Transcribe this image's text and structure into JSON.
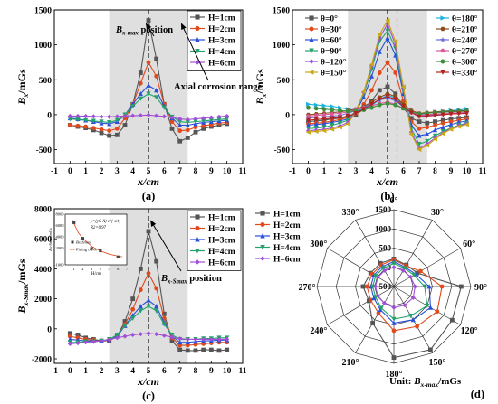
{
  "chart_data": [
    {
      "id": "a",
      "type": "line",
      "panel_label": "(a)",
      "xlabel": "x/cm",
      "ylabel": "Bx/mGs",
      "ylabel_main": "B",
      "ylabel_sub": "x",
      "ylabel_rest": "/mGs",
      "xlim": [
        -1,
        11
      ],
      "ylim": [
        -700,
        1500
      ],
      "xticks": [
        -1,
        0,
        1,
        2,
        3,
        4,
        5,
        6,
        7,
        8,
        9,
        10,
        11
      ],
      "yticks": [
        -500,
        0,
        500,
        1000,
        1500
      ],
      "grid": false,
      "shaded_ranges": [
        [
          2.5,
          7.5
        ]
      ],
      "vlines": [
        {
          "x": 5,
          "style": "dashed",
          "color": "#000000"
        }
      ],
      "legend": "top-right",
      "annotations": [
        {
          "main": "B",
          "sub": "x-max",
          "rest": " position"
        },
        {
          "main": "Axial corrosion range",
          "sub": "",
          "rest": ""
        }
      ],
      "x": [
        0,
        0.5,
        1,
        1.5,
        2,
        2.5,
        3,
        3.5,
        4,
        4.5,
        5,
        5.5,
        6,
        6.5,
        7,
        7.5,
        8,
        8.5,
        9,
        9.5,
        10
      ],
      "series": [
        {
          "name": "H=1cm",
          "color": "#555555",
          "marker": "square",
          "values": [
            -150,
            -170,
            -190,
            -220,
            -260,
            -300,
            -290,
            -150,
            150,
            600,
            1350,
            800,
            150,
            -200,
            -380,
            -330,
            -250,
            -200,
            -170,
            -150,
            -130
          ]
        },
        {
          "name": "H=2cm",
          "color": "#e04a1c",
          "marker": "circle",
          "values": [
            -150,
            -160,
            -170,
            -190,
            -210,
            -230,
            -200,
            -50,
            150,
            450,
            750,
            550,
            150,
            -100,
            -230,
            -220,
            -180,
            -160,
            -140,
            -120,
            -110
          ]
        },
        {
          "name": "H=3cm",
          "color": "#2a4fd8",
          "marker": "triangle-up",
          "values": [
            -50,
            -60,
            -80,
            -100,
            -120,
            -130,
            -100,
            0,
            150,
            300,
            420,
            350,
            120,
            -50,
            -150,
            -150,
            -130,
            -110,
            -100,
            -90,
            -80
          ]
        },
        {
          "name": "H=4cm",
          "color": "#23a36b",
          "marker": "triangle-down",
          "values": [
            -60,
            -70,
            -80,
            -90,
            -100,
            -110,
            -80,
            0,
            120,
            230,
            300,
            250,
            100,
            -30,
            -100,
            -110,
            -100,
            -90,
            -80,
            -70,
            -60
          ]
        },
        {
          "name": "H=6cm",
          "color": "#a24fd8",
          "marker": "diamond",
          "values": [
            -20,
            -20,
            -20,
            -25,
            -30,
            -30,
            -25,
            -20,
            -15,
            -10,
            -5,
            -15,
            -25,
            -40,
            -60,
            -70,
            -60,
            -50,
            -40,
            -30,
            -20
          ]
        }
      ]
    },
    {
      "id": "b",
      "type": "line",
      "panel_label": "(b)",
      "xlabel": "x/cm",
      "ylabel": "Bx/mGs",
      "ylabel_main": "B",
      "ylabel_sub": "x",
      "ylabel_rest": "/mGs",
      "xlim": [
        -1,
        11
      ],
      "ylim": [
        -700,
        1500
      ],
      "xticks": [
        -1,
        0,
        1,
        2,
        3,
        4,
        5,
        6,
        7,
        8,
        9,
        10,
        11
      ],
      "yticks": [
        -500,
        0,
        500,
        1000,
        1500
      ],
      "grid": false,
      "shaded_ranges": [
        [
          2.5,
          7.5
        ]
      ],
      "vlines": [
        {
          "x": 5,
          "style": "dashed",
          "color": "#000000"
        },
        {
          "x": 5.6,
          "style": "dashed",
          "color": "#c0392b"
        }
      ],
      "legend": "top",
      "x": [
        0,
        0.5,
        1,
        1.5,
        2,
        2.5,
        3,
        3.5,
        4,
        4.5,
        5,
        5.5,
        6,
        6.5,
        7,
        7.5,
        8,
        8.5,
        9,
        9.5,
        10
      ],
      "series": [
        {
          "name": "θ=0°",
          "color": "#555555",
          "marker": "square",
          "values": [
            -100,
            -90,
            -80,
            -60,
            -50,
            -30,
            0,
            80,
            200,
            350,
            400,
            300,
            100,
            -50,
            -100,
            -120,
            -100,
            -80,
            -60,
            -50,
            -40
          ]
        },
        {
          "name": "θ=30°",
          "color": "#e04a1c",
          "marker": "circle",
          "values": [
            -130,
            -120,
            -110,
            -90,
            -70,
            -40,
            20,
            150,
            350,
            600,
            750,
            600,
            200,
            -100,
            -200,
            -180,
            -150,
            -120,
            -100,
            -80,
            -60
          ]
        },
        {
          "name": "θ=60°",
          "color": "#2a4fd8",
          "marker": "triangle-up",
          "values": [
            -150,
            -140,
            -130,
            -110,
            -90,
            -60,
            50,
            250,
            550,
            900,
            1100,
            850,
            300,
            -150,
            -300,
            -280,
            -220,
            -180,
            -140,
            -110,
            -90
          ]
        },
        {
          "name": "θ=90°",
          "color": "#23a36b",
          "marker": "triangle-down",
          "values": [
            -200,
            -190,
            -180,
            -150,
            -120,
            -80,
            60,
            300,
            650,
            1050,
            1200,
            950,
            350,
            -200,
            -420,
            -380,
            -300,
            -240,
            -190,
            -150,
            -120
          ]
        },
        {
          "name": "θ=120°",
          "color": "#a24fd8",
          "marker": "diamond",
          "values": [
            -230,
            -220,
            -210,
            -190,
            -160,
            -110,
            50,
            320,
            700,
            1100,
            1300,
            1000,
            380,
            -250,
            -480,
            -420,
            -330,
            -260,
            -200,
            -160,
            -130
          ]
        },
        {
          "name": "θ=150°",
          "color": "#c9a812",
          "marker": "triangle-left",
          "values": [
            -250,
            -240,
            -230,
            -210,
            -180,
            -130,
            40,
            330,
            720,
            1150,
            1350,
            1050,
            400,
            -280,
            -500,
            -440,
            -350,
            -270,
            -210,
            -170,
            -140
          ]
        },
        {
          "name": "θ=180°",
          "color": "#1ab3e0",
          "marker": "triangle-right",
          "values": [
            150,
            140,
            130,
            120,
            100,
            80,
            60,
            80,
            130,
            220,
            280,
            240,
            120,
            40,
            0,
            20,
            40,
            50,
            60,
            70,
            80
          ]
        },
        {
          "name": "θ=210°",
          "color": "#8b4a1c",
          "marker": "hexagon",
          "values": [
            0,
            10,
            20,
            30,
            40,
            60,
            80,
            120,
            180,
            250,
            300,
            260,
            150,
            60,
            20,
            30,
            40,
            45,
            50,
            55,
            60
          ]
        },
        {
          "name": "θ=240°",
          "color": "#6e6ed8",
          "marker": "star",
          "values": [
            -50,
            -40,
            -30,
            -20,
            -10,
            20,
            60,
            110,
            160,
            210,
            240,
            200,
            110,
            30,
            -20,
            -10,
            0,
            10,
            20,
            25,
            30
          ]
        },
        {
          "name": "θ=270°",
          "color": "#d85a9a",
          "marker": "pentagon",
          "values": [
            -20,
            -10,
            0,
            10,
            20,
            40,
            70,
            100,
            130,
            160,
            180,
            150,
            90,
            30,
            -10,
            0,
            10,
            15,
            20,
            25,
            30
          ]
        },
        {
          "name": "θ=300°",
          "color": "#3e8e3e",
          "marker": "circle",
          "values": [
            100,
            90,
            80,
            70,
            60,
            50,
            50,
            70,
            100,
            140,
            160,
            140,
            90,
            40,
            10,
            20,
            30,
            35,
            40,
            45,
            50
          ]
        },
        {
          "name": "θ=330°",
          "color": "#b22222",
          "marker": "triangle-down",
          "values": [
            -80,
            -70,
            -60,
            -50,
            -40,
            -20,
            20,
            80,
            150,
            220,
            260,
            220,
            120,
            30,
            -30,
            -20,
            -10,
            0,
            10,
            15,
            20
          ]
        }
      ]
    },
    {
      "id": "c",
      "type": "line",
      "panel_label": "(c)",
      "xlabel": "x/cm",
      "ylabel": "Bx-Smax/mGs",
      "ylabel_main": "B",
      "ylabel_sub": "x-Smax",
      "ylabel_rest": "/mGs",
      "xlim": [
        -1,
        11
      ],
      "ylim": [
        -2300,
        8000
      ],
      "xticks": [
        -1,
        0,
        1,
        2,
        3,
        4,
        5,
        6,
        7,
        8,
        9,
        10,
        11
      ],
      "yticks": [
        -2000,
        0,
        2000,
        4000,
        6000,
        8000
      ],
      "grid": false,
      "shaded_ranges": [
        [
          2.5,
          7.5
        ]
      ],
      "vlines": [
        {
          "x": 5,
          "style": "dashed",
          "color": "#000000"
        }
      ],
      "legend": "top-right",
      "annotations": [
        {
          "main": "B",
          "sub": "x-Smax",
          "rest": " position"
        }
      ],
      "x": [
        0,
        0.5,
        1,
        1.5,
        2,
        2.5,
        3,
        3.5,
        4,
        4.5,
        5,
        5.5,
        6,
        6.5,
        7,
        7.5,
        8,
        8.5,
        9,
        9.5,
        10
      ],
      "series": [
        {
          "name": "H=1cm",
          "color": "#555555",
          "marker": "square",
          "values": [
            -300,
            -400,
            -600,
            -700,
            -800,
            -800,
            -500,
            500,
            2000,
            4000,
            6500,
            4500,
            1000,
            -800,
            -1400,
            -1450,
            -1450,
            -1400,
            -1400,
            -1450,
            -1400
          ]
        },
        {
          "name": "H=2cm",
          "color": "#e04a1c",
          "marker": "circle",
          "values": [
            -500,
            -600,
            -700,
            -750,
            -800,
            -800,
            -500,
            300,
            1300,
            2600,
            3700,
            2700,
            700,
            -600,
            -1100,
            -1100,
            -1050,
            -1000,
            -950,
            -900,
            -900
          ]
        },
        {
          "name": "H=3cm",
          "color": "#2a4fd8",
          "marker": "triangle-up",
          "values": [
            -700,
            -750,
            -800,
            -800,
            -800,
            -750,
            -500,
            200,
            900,
            1500,
            1900,
            1500,
            400,
            -500,
            -900,
            -900,
            -850,
            -800,
            -800,
            -750,
            -750
          ]
        },
        {
          "name": "H=4cm",
          "color": "#23a36b",
          "marker": "triangle-down",
          "values": [
            -900,
            -900,
            -850,
            -850,
            -800,
            -700,
            -400,
            200,
            700,
            1200,
            1500,
            1200,
            300,
            -400,
            -700,
            -700,
            -700,
            -650,
            -650,
            -600,
            -600
          ]
        },
        {
          "name": "H=6cm",
          "color": "#a24fd8",
          "marker": "diamond",
          "values": [
            -1000,
            -950,
            -900,
            -850,
            -800,
            -700,
            -600,
            -500,
            -400,
            -350,
            -300,
            -350,
            -450,
            -550,
            -650,
            -700,
            -700,
            -700,
            -700,
            -700,
            -700
          ]
        }
      ],
      "inset": {
        "type": "scatter",
        "xlabel": "H/cm",
        "ylabel": "Bx-Smax/mGs",
        "xlim": [
          0,
          7
        ],
        "ylim": [
          -1000,
          8000
        ],
        "xticks": [
          1,
          2,
          3,
          4,
          5,
          6,
          7
        ],
        "yticks": [
          -1000,
          2000,
          4000,
          6000,
          8000
        ],
        "equation": "y=(y0-A)·e^{-x/t}",
        "r2": "R2=0.97",
        "legend_point": "Bx-Smax",
        "legend_fit": "Fitting curve",
        "points": [
          [
            1,
            6500
          ],
          [
            2,
            3700
          ],
          [
            3,
            1900
          ],
          [
            4,
            1500
          ],
          [
            6,
            400
          ]
        ],
        "fit": [
          [
            0.8,
            7000
          ],
          [
            1.5,
            4700
          ],
          [
            2,
            3700
          ],
          [
            3,
            2300
          ],
          [
            4,
            1450
          ],
          [
            5,
            900
          ],
          [
            6,
            550
          ],
          [
            6.5,
            430
          ]
        ]
      }
    },
    {
      "id": "d",
      "type": "radar",
      "panel_label": "(d)",
      "unit_label": "Unit:",
      "unit_main": "B",
      "unit_sub": "x-max",
      "unit_rest": "/mGs",
      "angles": [
        "0°",
        "30°",
        "60°",
        "90°",
        "120°",
        "150°",
        "180°",
        "210°",
        "240°",
        "270°",
        "300°",
        "330°"
      ],
      "rlim": [
        -500,
        1500
      ],
      "rticks": [
        -500,
        0,
        500,
        1000,
        1500
      ],
      "legend": "left",
      "series": [
        {
          "name": "H=1cm",
          "color": "#555555",
          "marker": "square",
          "values": [
            220,
            150,
            200,
            1250,
            1250,
            1400,
            1350,
            600,
            250,
            300,
            200,
            200
          ]
        },
        {
          "name": "H=2cm",
          "color": "#e04a1c",
          "marker": "circle",
          "values": [
            200,
            120,
            300,
            750,
            800,
            700,
            650,
            300,
            200,
            200,
            150,
            150
          ]
        },
        {
          "name": "H=3cm",
          "color": "#2a4fd8",
          "marker": "triangle-up",
          "values": [
            150,
            80,
            150,
            420,
            600,
            500,
            450,
            200,
            100,
            100,
            100,
            100
          ]
        },
        {
          "name": "H=4cm",
          "color": "#23a36b",
          "marker": "triangle-down",
          "values": [
            100,
            50,
            100,
            300,
            500,
            380,
            350,
            150,
            50,
            50,
            50,
            50
          ]
        },
        {
          "name": "H=6cm",
          "color": "#a24fd8",
          "marker": "diamond",
          "values": [
            0,
            -20,
            0,
            50,
            80,
            60,
            50,
            0,
            -20,
            -20,
            -20,
            -20
          ]
        }
      ]
    }
  ]
}
